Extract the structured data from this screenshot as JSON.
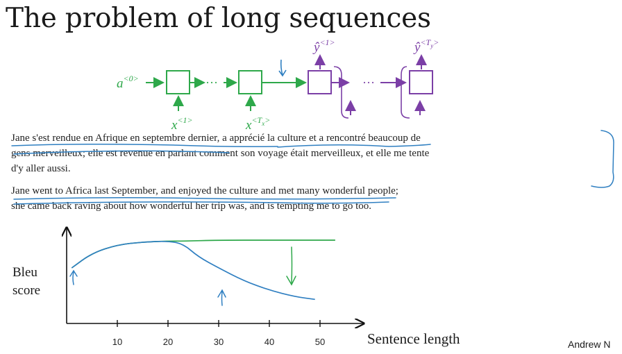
{
  "slide": {
    "title": "The problem of long sequences",
    "author": "Andrew N"
  },
  "diagram": {
    "encoder_input_first": "a<0>",
    "encoder_x_first": "x<1>",
    "encoder_x_last": "x<Tx>",
    "decoder_y_first": "ŷ<1>",
    "decoder_y_last": "ŷ<Ty>",
    "ellipsis": "···"
  },
  "french_text": [
    "Jane s'est rendue en Afrique en septembre dernier, a apprécié la culture et a rencontré beaucoup de",
    "gens merveilleux; elle est revenue en parlant comment son voyage était merveilleux, et elle me tente",
    "d'y aller aussi."
  ],
  "english_text": [
    "Jane went to Africa last September, and enjoyed the culture and met many wonderful people;",
    "she came back raving about how wonderful her trip was, and is tempting me to go too."
  ],
  "chart_labels": {
    "y_label_line1": "Bleu",
    "y_label_line2": "score",
    "x_label": "Sentence length"
  },
  "colors": {
    "encoder_green": "#2ea84a",
    "decoder_purple": "#7b3fa6",
    "annotation_blue": "#2f7fc1"
  },
  "chart_data": {
    "type": "line",
    "xlabel": "Sentence length",
    "ylabel": "Bleu score",
    "x_ticks": [
      10,
      20,
      30,
      40,
      50
    ],
    "xlim": [
      0,
      60
    ],
    "series": [
      {
        "color": "#2ea84a",
        "x": [
          1,
          5,
          10,
          15,
          20,
          23,
          30,
          40,
          50,
          53
        ],
        "y": [
          0.6,
          0.76,
          0.85,
          0.88,
          0.89,
          0.89,
          0.9,
          0.9,
          0.9,
          0.9
        ]
      },
      {
        "color": "#2f7fc1",
        "x": [
          1,
          5,
          10,
          15,
          20,
          23,
          26,
          30,
          35,
          40,
          45,
          49
        ],
        "y": [
          0.6,
          0.76,
          0.85,
          0.88,
          0.89,
          0.86,
          0.72,
          0.6,
          0.46,
          0.36,
          0.29,
          0.26
        ]
      }
    ]
  }
}
